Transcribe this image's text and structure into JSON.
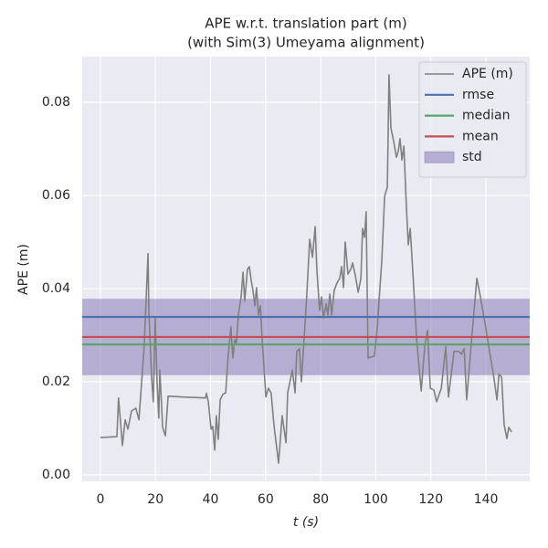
{
  "chart_data": {
    "type": "line",
    "title": [
      "APE w.r.t. translation part (m)",
      "(with Sim(3) Umeyama alignment)"
    ],
    "xlabel": "t (s)",
    "ylabel": "APE (m)",
    "x": [
      0,
      6,
      6.6,
      8,
      9,
      10,
      11.3,
      12.9,
      14,
      15.9,
      17.3,
      17.6,
      18.6,
      19.2,
      19.9,
      20.6,
      21.2,
      21.6,
      22.6,
      23.6,
      24.6,
      29.9,
      38.2,
      38.5,
      39.2,
      40.2,
      40.8,
      41.5,
      42.1,
      42.8,
      43.5,
      44.5,
      45.5,
      46.4,
      47.4,
      48.1,
      48.8,
      49.4,
      50.1,
      51.1,
      51.8,
      52.4,
      53.4,
      54.1,
      54.7,
      55.4,
      56.1,
      56.7,
      57.4,
      58.1,
      58.7,
      60.1,
      61.0,
      62.0,
      63.0,
      64.7,
      66.0,
      67.4,
      68.0,
      69.7,
      70.7,
      71.3,
      72.3,
      73.0,
      74.0,
      75.0,
      76.0,
      77.0,
      78.0,
      78.6,
      79.6,
      80.3,
      81.0,
      82.0,
      82.6,
      83.3,
      84.0,
      84.9,
      85.9,
      86.9,
      87.6,
      88.3,
      88.9,
      89.9,
      90.9,
      91.6,
      92.6,
      93.6,
      94.6,
      95.2,
      95.9,
      96.5,
      97.2,
      99.5,
      100.5,
      102.2,
      103.2,
      104.2,
      104.8,
      105.5,
      106.5,
      107.5,
      108.2,
      108.8,
      109.5,
      110.2,
      111.1,
      111.8,
      112.5,
      113.5,
      114.8,
      116.5,
      117.8,
      118.8,
      119.8,
      121.1,
      122.1,
      123.8,
      125.4,
      126.4,
      128.4,
      130.1,
      131.1,
      132.1,
      133.0,
      134.7,
      136.7,
      138.0,
      139.7,
      141.3,
      142.7,
      144.0,
      144.7,
      145.7,
      146.6,
      147.6,
      148.3,
      149.3
    ],
    "series": [
      {
        "name": "APE (m)",
        "color": "#808080",
        "values": [
          0.008,
          0.0082,
          0.0165,
          0.0063,
          0.0118,
          0.0098,
          0.0137,
          0.0143,
          0.0118,
          0.0275,
          0.0475,
          0.0353,
          0.021,
          0.0157,
          0.0337,
          0.0196,
          0.0122,
          0.0225,
          0.0102,
          0.0084,
          0.0169,
          0.0167,
          0.0165,
          0.0175,
          0.0157,
          0.0098,
          0.0104,
          0.0053,
          0.0127,
          0.0076,
          0.0161,
          0.0173,
          0.0176,
          0.0255,
          0.0318,
          0.0251,
          0.029,
          0.0282,
          0.0343,
          0.0382,
          0.0435,
          0.0373,
          0.0441,
          0.0447,
          0.042,
          0.0396,
          0.0363,
          0.0402,
          0.0343,
          0.0363,
          0.0294,
          0.0167,
          0.0186,
          0.0176,
          0.0108,
          0.0025,
          0.0127,
          0.0069,
          0.0176,
          0.0225,
          0.0176,
          0.0265,
          0.0271,
          0.02,
          0.0294,
          0.0392,
          0.0506,
          0.0467,
          0.0533,
          0.0441,
          0.0353,
          0.0382,
          0.0337,
          0.0367,
          0.0343,
          0.0388,
          0.0343,
          0.0396,
          0.0412,
          0.0422,
          0.0447,
          0.0402,
          0.05,
          0.0431,
          0.0441,
          0.0455,
          0.0427,
          0.0392,
          0.0422,
          0.0529,
          0.051,
          0.0565,
          0.0251,
          0.0255,
          0.0314,
          0.0461,
          0.0598,
          0.0618,
          0.0859,
          0.0745,
          0.0716,
          0.0682,
          0.0696,
          0.0722,
          0.0676,
          0.0706,
          0.0578,
          0.0494,
          0.0529,
          0.0431,
          0.0294,
          0.018,
          0.0278,
          0.031,
          0.0186,
          0.0182,
          0.0157,
          0.0186,
          0.0275,
          0.0167,
          0.0265,
          0.0265,
          0.0259,
          0.0271,
          0.0161,
          0.0284,
          0.0422,
          0.0382,
          0.0324,
          0.0265,
          0.0216,
          0.0161,
          0.0216,
          0.021,
          0.0108,
          0.0078,
          0.0102,
          0.0092
        ]
      }
    ],
    "hlines": [
      {
        "name": "rmse",
        "color": "#4c72b0",
        "value": 0.0339
      },
      {
        "name": "median",
        "color": "#55a868",
        "value": 0.028
      },
      {
        "name": "mean",
        "color": "#c44e52",
        "value": 0.0296
      }
    ],
    "band": {
      "name": "std",
      "color": "#8172b2",
      "values": [
        0.0214,
        0.0378
      ]
    },
    "xlim": [
      -6.6,
      155.9
    ],
    "ylim": [
      -0.0014,
      0.0898
    ],
    "xticks": [
      0,
      20,
      40,
      60,
      80,
      100,
      120,
      140
    ],
    "yticks": [
      {
        "value": 0,
        "label": "0.00"
      },
      {
        "value": 0.02,
        "label": "0.02"
      },
      {
        "value": 0.04,
        "label": "0.04"
      },
      {
        "value": 0.06,
        "label": "0.06"
      },
      {
        "value": 0.08,
        "label": "0.08"
      }
    ],
    "grid": true,
    "legend": "upper right"
  }
}
